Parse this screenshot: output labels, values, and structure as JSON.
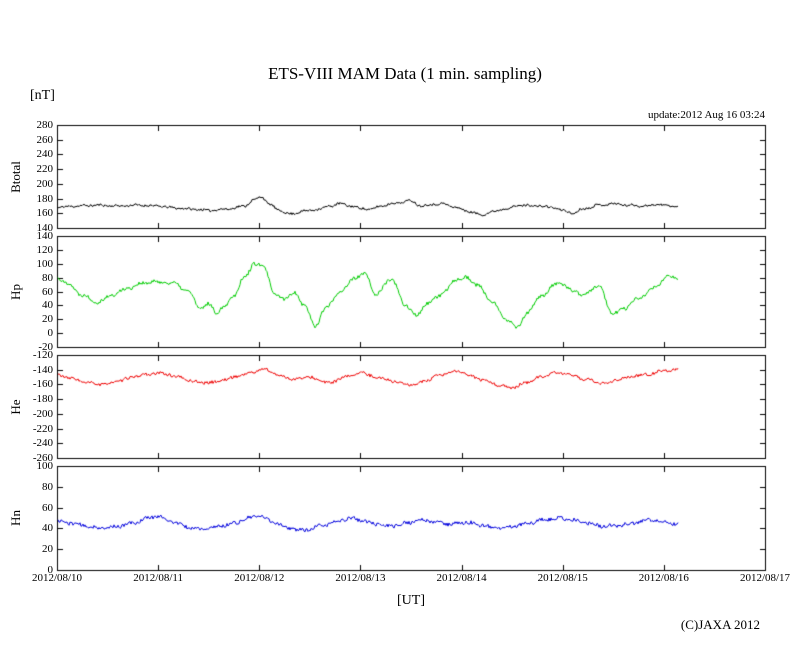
{
  "page": {
    "title": "ETS-VIII MAM Data (1 min. sampling)",
    "unit_label": "[nT]",
    "update_label": "update:2012 Aug 16 03:24",
    "xaxis_label": "[UT]",
    "copyright": "(C)JAXA 2012"
  },
  "chart_data": {
    "type": "line",
    "title": "ETS-VIII MAM Data (1 min. sampling)",
    "x_unit": "UT",
    "y_unit": "nT",
    "x_tick_labels": [
      "2012/08/10",
      "2012/08/11",
      "2012/08/12",
      "2012/08/13",
      "2012/08/14",
      "2012/08/15",
      "2012/08/16",
      "2012/08/17"
    ],
    "x_range_days": [
      0,
      7
    ],
    "data_end_day": 6.14,
    "grid": false,
    "legend": "none",
    "panels": [
      {
        "name": "Btotal",
        "color": "#000000",
        "ylim": [
          140,
          280
        ],
        "yticks": [
          280,
          260,
          240,
          220,
          200,
          180,
          160,
          140
        ],
        "noise": 1.6,
        "seed": 11,
        "keypoints": {
          "x": [
            0,
            0.2,
            0.4,
            0.6,
            0.8,
            1.0,
            1.1,
            1.3,
            1.5,
            1.7,
            1.85,
            1.95,
            2.02,
            2.1,
            2.2,
            2.3,
            2.45,
            2.6,
            2.7,
            2.8,
            2.9,
            3.0,
            3.1,
            3.2,
            3.35,
            3.5,
            3.6,
            3.7,
            3.8,
            3.95,
            4.05,
            4.2,
            4.3,
            4.45,
            4.6,
            4.75,
            4.9,
            5.0,
            5.1,
            5.2,
            5.35,
            5.5,
            5.65,
            5.8,
            5.95,
            6.05,
            6.14
          ],
          "y": [
            168,
            170,
            171,
            170,
            171,
            170,
            168,
            166,
            164,
            166,
            170,
            178,
            183,
            172,
            164,
            159,
            163,
            166,
            170,
            173,
            170,
            167,
            165,
            170,
            174,
            177,
            170,
            172,
            173,
            168,
            163,
            158,
            162,
            167,
            171,
            170,
            168,
            164,
            160,
            166,
            171,
            173,
            171,
            170,
            172,
            170,
            169
          ]
        }
      },
      {
        "name": "Hp",
        "color": "#00cc00",
        "ylim": [
          -20,
          140
        ],
        "yticks": [
          140,
          120,
          100,
          80,
          60,
          40,
          20,
          0,
          -20
        ],
        "noise": 2.6,
        "seed": 22,
        "keypoints": {
          "x": [
            0,
            0.1,
            0.25,
            0.4,
            0.55,
            0.7,
            0.85,
            1.0,
            1.15,
            1.3,
            1.42,
            1.5,
            1.58,
            1.65,
            1.75,
            1.85,
            1.95,
            2.05,
            2.15,
            2.25,
            2.35,
            2.45,
            2.55,
            2.65,
            2.8,
            2.95,
            3.05,
            3.15,
            3.3,
            3.45,
            3.55,
            3.65,
            3.8,
            3.95,
            4.05,
            4.15,
            4.3,
            4.45,
            4.55,
            4.65,
            4.8,
            4.95,
            5.1,
            5.2,
            5.35,
            5.5,
            5.6,
            5.75,
            5.9,
            6.05,
            6.14
          ],
          "y": [
            80,
            72,
            55,
            45,
            55,
            65,
            72,
            74,
            72,
            60,
            35,
            42,
            30,
            38,
            55,
            80,
            100,
            95,
            55,
            50,
            58,
            40,
            10,
            35,
            60,
            80,
            85,
            55,
            78,
            40,
            25,
            42,
            55,
            78,
            80,
            70,
            45,
            20,
            8,
            30,
            55,
            72,
            62,
            55,
            68,
            28,
            35,
            50,
            65,
            82,
            80
          ]
        }
      },
      {
        "name": "He",
        "color": "#ee0000",
        "ylim": [
          -260,
          -120
        ],
        "yticks": [
          -120,
          -140,
          -160,
          -180,
          -200,
          -220,
          -240,
          -260
        ],
        "noise": 2.0,
        "seed": 33,
        "keypoints": {
          "x": [
            0,
            0.15,
            0.3,
            0.45,
            0.6,
            0.75,
            0.9,
            1.05,
            1.2,
            1.35,
            1.5,
            1.65,
            1.8,
            1.95,
            2.05,
            2.2,
            2.35,
            2.5,
            2.6,
            2.7,
            2.85,
            3.0,
            3.1,
            3.25,
            3.4,
            3.5,
            3.65,
            3.8,
            3.95,
            4.1,
            4.25,
            4.4,
            4.5,
            4.65,
            4.8,
            4.95,
            5.1,
            5.25,
            5.4,
            5.55,
            5.7,
            5.85,
            6.0,
            6.14
          ],
          "y": [
            -147,
            -152,
            -158,
            -160,
            -156,
            -150,
            -146,
            -145,
            -150,
            -156,
            -158,
            -154,
            -148,
            -143,
            -139,
            -148,
            -153,
            -150,
            -155,
            -158,
            -150,
            -144,
            -148,
            -153,
            -158,
            -161,
            -155,
            -147,
            -142,
            -149,
            -156,
            -162,
            -165,
            -157,
            -149,
            -144,
            -148,
            -154,
            -159,
            -153,
            -149,
            -146,
            -141,
            -140
          ]
        }
      },
      {
        "name": "Hn",
        "color": "#0000dd",
        "ylim": [
          0,
          100
        ],
        "yticks": [
          100,
          80,
          60,
          40,
          20,
          0
        ],
        "noise": 1.7,
        "seed": 44,
        "keypoints": {
          "x": [
            0,
            0.15,
            0.3,
            0.45,
            0.6,
            0.75,
            0.9,
            1.0,
            1.15,
            1.3,
            1.45,
            1.6,
            1.75,
            1.9,
            2.0,
            2.15,
            2.3,
            2.45,
            2.6,
            2.75,
            2.9,
            3.0,
            3.15,
            3.3,
            3.45,
            3.6,
            3.75,
            3.9,
            4.05,
            4.2,
            4.35,
            4.5,
            4.65,
            4.8,
            4.95,
            5.1,
            5.25,
            5.4,
            5.55,
            5.7,
            5.85,
            6.0,
            6.14
          ],
          "y": [
            47,
            45,
            42,
            40,
            42,
            45,
            50,
            52,
            46,
            41,
            39,
            42,
            45,
            50,
            52,
            46,
            40,
            38,
            42,
            46,
            50,
            48,
            44,
            42,
            45,
            48,
            46,
            44,
            46,
            43,
            40,
            42,
            45,
            48,
            50,
            48,
            45,
            42,
            43,
            45,
            48,
            47,
            44
          ]
        }
      }
    ]
  }
}
